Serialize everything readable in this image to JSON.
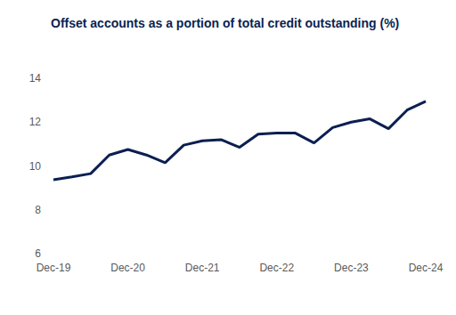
{
  "chart_data": {
    "type": "line",
    "title": "Offset accounts as a portion of total credit outstanding (%)",
    "categories": [
      "Dec-19",
      null,
      null,
      null,
      "Dec-20",
      null,
      null,
      null,
      "Dec-21",
      null,
      null,
      null,
      "Dec-22",
      null,
      null,
      null,
      "Dec-23",
      null,
      null,
      null,
      "Dec-24"
    ],
    "values": [
      9.37,
      9.5,
      9.65,
      10.5,
      10.75,
      10.5,
      10.15,
      10.95,
      11.15,
      11.2,
      10.85,
      11.45,
      11.5,
      11.5,
      11.05,
      11.75,
      12.0,
      12.15,
      11.7,
      12.55,
      12.95
    ],
    "color": "#0b1f51",
    "ylim": [
      6,
      14
    ],
    "yticks": [
      6,
      8,
      10,
      12,
      14
    ],
    "grid": false
  }
}
